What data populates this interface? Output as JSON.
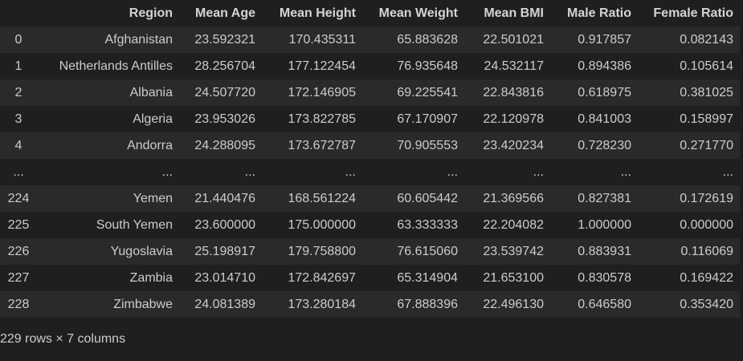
{
  "table": {
    "index_header": "",
    "columns": [
      "Region",
      "Mean Age",
      "Mean Height",
      "Mean Weight",
      "Mean BMI",
      "Male Ratio",
      "Female Ratio"
    ],
    "rows": [
      {
        "index": "0",
        "cells": [
          "Afghanistan",
          "23.592321",
          "170.435311",
          "65.883628",
          "22.501021",
          "0.917857",
          "0.082143"
        ]
      },
      {
        "index": "1",
        "cells": [
          "Netherlands Antilles",
          "28.256704",
          "177.122454",
          "76.935648",
          "24.532117",
          "0.894386",
          "0.105614"
        ]
      },
      {
        "index": "2",
        "cells": [
          "Albania",
          "24.507720",
          "172.146905",
          "69.225541",
          "22.843816",
          "0.618975",
          "0.381025"
        ]
      },
      {
        "index": "3",
        "cells": [
          "Algeria",
          "23.953026",
          "173.822785",
          "67.170907",
          "22.120978",
          "0.841003",
          "0.158997"
        ]
      },
      {
        "index": "4",
        "cells": [
          "Andorra",
          "24.288095",
          "173.672787",
          "70.905553",
          "23.420234",
          "0.728230",
          "0.271770"
        ]
      },
      {
        "index": "...",
        "cells": [
          "...",
          "...",
          "...",
          "...",
          "...",
          "...",
          "..."
        ]
      },
      {
        "index": "224",
        "cells": [
          "Yemen",
          "21.440476",
          "168.561224",
          "60.605442",
          "21.369566",
          "0.827381",
          "0.172619"
        ]
      },
      {
        "index": "225",
        "cells": [
          "South Yemen",
          "23.600000",
          "175.000000",
          "63.333333",
          "22.204082",
          "1.000000",
          "0.000000"
        ]
      },
      {
        "index": "226",
        "cells": [
          "Yugoslavia",
          "25.198917",
          "179.758800",
          "76.615060",
          "23.539742",
          "0.883931",
          "0.116069"
        ]
      },
      {
        "index": "227",
        "cells": [
          "Zambia",
          "23.014710",
          "172.842697",
          "65.314904",
          "21.653100",
          "0.830578",
          "0.169422"
        ]
      },
      {
        "index": "228",
        "cells": [
          "Zimbabwe",
          "24.081389",
          "173.280184",
          "67.888396",
          "22.496130",
          "0.646580",
          "0.353420"
        ]
      }
    ]
  },
  "shape_text": "229 rows × 7 columns"
}
